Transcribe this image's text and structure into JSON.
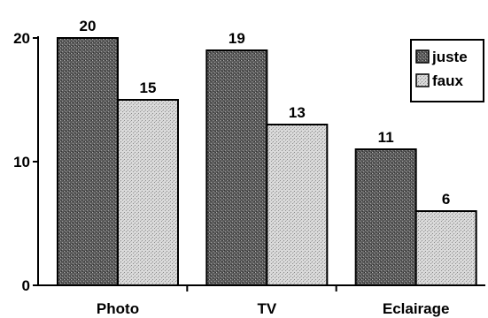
{
  "chart_data": {
    "type": "bar",
    "categories": [
      "Photo",
      "TV",
      "Eclairage"
    ],
    "series": [
      {
        "name": "juste",
        "values": [
          20,
          19,
          11
        ],
        "color": "#6e6e6e",
        "pattern": "dark-stipple"
      },
      {
        "name": "faux",
        "values": [
          15,
          13,
          6
        ],
        "color": "#cfcfcf",
        "pattern": "light-stipple"
      }
    ],
    "yticks": [
      0,
      10,
      20
    ],
    "ylim": [
      0,
      20
    ],
    "grid": false,
    "legend_position": "top-right",
    "data_labels": true
  }
}
